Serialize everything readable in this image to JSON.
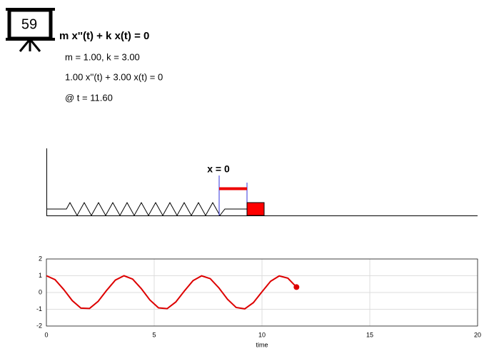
{
  "header": {
    "badge": "59",
    "equation": "m x''(t) + k x(t) = 0",
    "params": "m = 1.00, k = 3.00",
    "instance": "1.00 x''(t) + 3.00 x(t) = 0",
    "time": "@ t = 11.60"
  },
  "diagram": {
    "label": "x = 0"
  },
  "chart_data": {
    "type": "line",
    "xlabel": "time",
    "color": "#dd0000",
    "x": [
      0,
      0.4,
      0.8,
      1.2,
      1.6,
      2.0,
      2.4,
      2.8,
      3.2,
      3.6,
      4.0,
      4.4,
      4.8,
      5.2,
      5.6,
      6.0,
      6.4,
      6.8,
      7.2,
      7.6,
      8.0,
      8.4,
      8.8,
      9.2,
      9.6,
      10.0,
      10.4,
      10.8,
      11.2,
      11.6
    ],
    "values": [
      1.0,
      0.769,
      0.184,
      -0.486,
      -0.932,
      -0.951,
      -0.528,
      0.136,
      0.741,
      0.999,
      0.799,
      0.231,
      -0.444,
      -0.914,
      -0.963,
      -0.568,
      0.089,
      0.705,
      0.995,
      0.827,
      0.277,
      -0.401,
      -0.893,
      -0.974,
      -0.606,
      0.041,
      0.67,
      0.99,
      0.853,
      0.322
    ],
    "xlim": [
      0,
      20
    ],
    "ylim": [
      -2,
      2
    ],
    "xticks": [
      0,
      5,
      10,
      15,
      20
    ],
    "yticks": [
      -2,
      -1,
      0,
      1,
      2
    ],
    "grid": true
  }
}
